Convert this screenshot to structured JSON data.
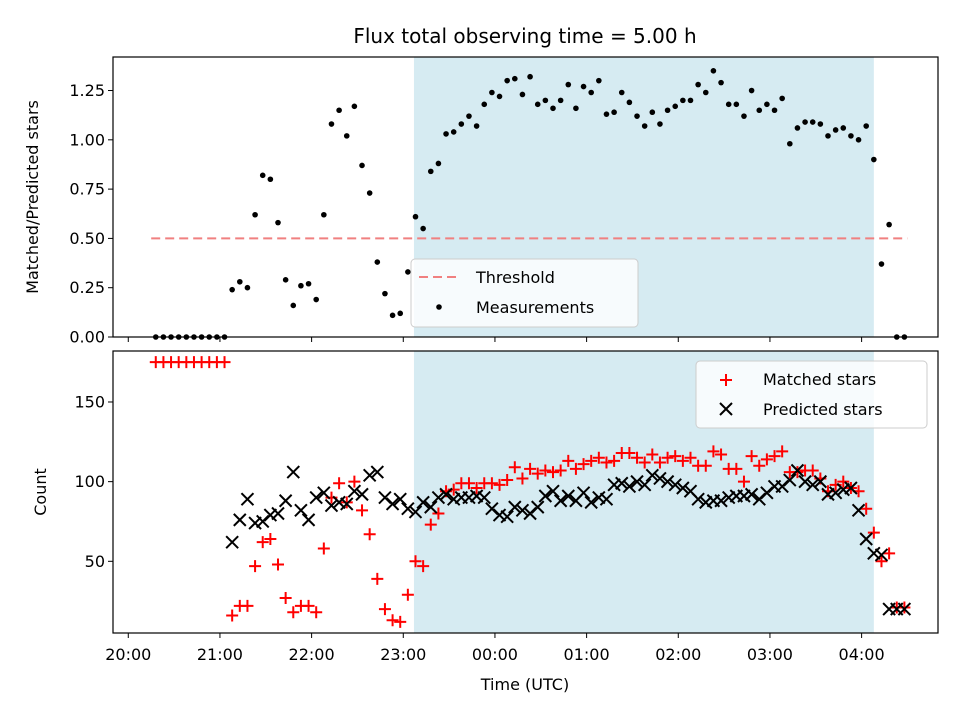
{
  "figure": {
    "title": "Flux total observing time = 5.00 h"
  },
  "chart_data": [
    {
      "type": "scatter",
      "panel": "top",
      "title": "Flux total observing time = 5.00 h",
      "xlabel": "",
      "ylabel": "Matched/Predicted stars",
      "ylim": [
        0.0,
        1.42
      ],
      "yticks": [
        0.0,
        0.25,
        0.5,
        0.75,
        1.0,
        1.25
      ],
      "yticklabels": [
        "0.00",
        "0.25",
        "0.50",
        "0.75",
        "1.00",
        "1.25"
      ],
      "shaded_x_range": [
        "23:07",
        "04:08"
      ],
      "shade_color": "#add8e6",
      "threshold": {
        "name": "Threshold",
        "value": 0.5,
        "x_range": [
          "20:15",
          "04:30"
        ],
        "color": "#f08080",
        "style": "dashed"
      },
      "legend": {
        "placement": "lower center",
        "entries": [
          "Threshold",
          "Measurements"
        ]
      },
      "series": [
        {
          "name": "Measurements",
          "color": "#000000",
          "marker": "dot",
          "x": [
            "20:18",
            "20:23",
            "20:28",
            "20:33",
            "20:38",
            "20:43",
            "20:48",
            "20:53",
            "20:58",
            "21:03",
            "21:08",
            "21:13",
            "21:18",
            "21:23",
            "21:28",
            "21:33",
            "21:38",
            "21:43",
            "21:48",
            "21:53",
            "21:58",
            "22:03",
            "22:08",
            "22:13",
            "22:18",
            "22:23",
            "22:28",
            "22:33",
            "22:38",
            "22:43",
            "22:48",
            "22:53",
            "22:58",
            "23:03",
            "23:08",
            "23:13",
            "23:18",
            "23:23",
            "23:28",
            "23:33",
            "23:38",
            "23:43",
            "23:48",
            "23:53",
            "23:58",
            "00:03",
            "00:08",
            "00:13",
            "00:18",
            "00:23",
            "00:28",
            "00:33",
            "00:38",
            "00:43",
            "00:48",
            "00:53",
            "00:58",
            "01:03",
            "01:08",
            "01:13",
            "01:18",
            "01:23",
            "01:28",
            "01:33",
            "01:38",
            "01:43",
            "01:48",
            "01:53",
            "01:58",
            "02:03",
            "02:08",
            "02:13",
            "02:18",
            "02:23",
            "02:28",
            "02:33",
            "02:38",
            "02:43",
            "02:48",
            "02:53",
            "02:58",
            "03:03",
            "03:08",
            "03:13",
            "03:18",
            "03:23",
            "03:28",
            "03:33",
            "03:38",
            "03:43",
            "03:48",
            "03:53",
            "03:58",
            "04:03",
            "04:08",
            "04:13",
            "04:18",
            "04:23",
            "04:28"
          ],
          "y": [
            0.0,
            0.0,
            0.0,
            0.0,
            0.0,
            0.0,
            0.0,
            0.0,
            0.0,
            0.0,
            0.24,
            0.28,
            0.25,
            0.62,
            0.82,
            0.8,
            0.58,
            0.29,
            0.16,
            0.26,
            0.27,
            0.19,
            0.62,
            1.08,
            1.15,
            1.02,
            1.17,
            0.87,
            0.73,
            0.38,
            0.22,
            0.11,
            0.12,
            0.33,
            0.61,
            0.55,
            0.84,
            0.88,
            1.03,
            1.04,
            1.08,
            1.12,
            1.07,
            1.18,
            1.24,
            1.22,
            1.3,
            1.31,
            1.23,
            1.32,
            1.18,
            1.2,
            1.16,
            1.2,
            1.28,
            1.16,
            1.27,
            1.24,
            1.3,
            1.13,
            1.14,
            1.24,
            1.19,
            1.12,
            1.07,
            1.14,
            1.08,
            1.15,
            1.17,
            1.2,
            1.2,
            1.28,
            1.24,
            1.35,
            1.29,
            1.18,
            1.18,
            1.12,
            1.25,
            1.15,
            1.18,
            1.15,
            1.21,
            0.98,
            1.06,
            1.09,
            1.09,
            1.08,
            1.02,
            1.05,
            1.06,
            1.02,
            1.0,
            1.07,
            0.9,
            0.37,
            0.57,
            0.0,
            0.0
          ]
        }
      ]
    },
    {
      "type": "scatter",
      "panel": "bottom",
      "xlabel": "Time (UTC)",
      "ylabel": "Count",
      "ylim": [
        5,
        182
      ],
      "yticks": [
        50,
        100,
        150
      ],
      "yticklabels": [
        "50",
        "100",
        "150"
      ],
      "xlim": [
        "19:50",
        "04:50"
      ],
      "xticks": [
        "20:00",
        "21:00",
        "22:00",
        "23:00",
        "00:00",
        "01:00",
        "02:00",
        "03:00",
        "04:00"
      ],
      "shaded_x_range": [
        "23:07",
        "04:08"
      ],
      "shade_color": "#add8e6",
      "legend": {
        "placement": "upper right",
        "entries": [
          "Matched stars",
          "Predicted stars"
        ]
      },
      "series": [
        {
          "name": "Matched stars",
          "color": "#ff0000",
          "marker": "plus",
          "x": [
            "20:18",
            "20:23",
            "20:28",
            "20:33",
            "20:38",
            "20:43",
            "20:48",
            "20:53",
            "20:58",
            "21:03",
            "21:08",
            "21:13",
            "21:18",
            "21:23",
            "21:28",
            "21:33",
            "21:38",
            "21:43",
            "21:48",
            "21:53",
            "21:58",
            "22:03",
            "22:08",
            "22:13",
            "22:18",
            "22:23",
            "22:28",
            "22:33",
            "22:38",
            "22:43",
            "22:48",
            "22:53",
            "22:58",
            "23:03",
            "23:08",
            "23:13",
            "23:18",
            "23:23",
            "23:28",
            "23:33",
            "23:38",
            "23:43",
            "23:48",
            "23:53",
            "23:58",
            "00:03",
            "00:08",
            "00:13",
            "00:18",
            "00:23",
            "00:28",
            "00:33",
            "00:38",
            "00:43",
            "00:48",
            "00:53",
            "00:58",
            "01:03",
            "01:08",
            "01:13",
            "01:18",
            "01:23",
            "01:28",
            "01:33",
            "01:38",
            "01:43",
            "01:48",
            "01:53",
            "01:58",
            "02:03",
            "02:08",
            "02:13",
            "02:18",
            "02:23",
            "02:28",
            "02:33",
            "02:38",
            "02:43",
            "02:48",
            "02:53",
            "02:58",
            "03:03",
            "03:08",
            "03:13",
            "03:18",
            "03:23",
            "03:28",
            "03:33",
            "03:38",
            "03:43",
            "03:48",
            "03:53",
            "03:58",
            "04:03",
            "04:08",
            "04:13",
            "04:18",
            "04:23",
            "04:28"
          ],
          "y": [
            175,
            175,
            175,
            175,
            175,
            175,
            175,
            175,
            175,
            175,
            16,
            22,
            22,
            47,
            62,
            64,
            48,
            27,
            18,
            22,
            22,
            18,
            58,
            90,
            99,
            87,
            100,
            82,
            67,
            39,
            20,
            13,
            12,
            29,
            50,
            47,
            73,
            80,
            94,
            95,
            99,
            99,
            96,
            99,
            99,
            98,
            101,
            109,
            102,
            108,
            105,
            107,
            106,
            107,
            113,
            108,
            111,
            113,
            115,
            112,
            113,
            118,
            118,
            115,
            112,
            117,
            112,
            115,
            116,
            113,
            115,
            110,
            110,
            119,
            117,
            108,
            108,
            100,
            116,
            110,
            114,
            116,
            119,
            106,
            106,
            107,
            107,
            102,
            94,
            98,
            100,
            96,
            94,
            83,
            68,
            50,
            55,
            21,
            21
          ]
        },
        {
          "name": "Predicted stars",
          "color": "#000000",
          "marker": "x",
          "x": [
            "21:08",
            "21:13",
            "21:18",
            "21:23",
            "21:28",
            "21:33",
            "21:38",
            "21:43",
            "21:48",
            "21:53",
            "21:58",
            "22:03",
            "22:08",
            "22:13",
            "22:18",
            "22:23",
            "22:28",
            "22:33",
            "22:38",
            "22:43",
            "22:48",
            "22:53",
            "22:58",
            "23:03",
            "23:08",
            "23:13",
            "23:18",
            "23:23",
            "23:28",
            "23:33",
            "23:38",
            "23:43",
            "23:48",
            "23:53",
            "23:58",
            "00:03",
            "00:08",
            "00:13",
            "00:18",
            "00:23",
            "00:28",
            "00:33",
            "00:38",
            "00:43",
            "00:48",
            "00:53",
            "00:58",
            "01:03",
            "01:08",
            "01:13",
            "01:18",
            "01:23",
            "01:28",
            "01:33",
            "01:38",
            "01:43",
            "01:48",
            "01:53",
            "01:58",
            "02:03",
            "02:08",
            "02:13",
            "02:18",
            "02:23",
            "02:28",
            "02:33",
            "02:38",
            "02:43",
            "02:48",
            "02:53",
            "02:58",
            "03:03",
            "03:08",
            "03:13",
            "03:18",
            "03:23",
            "03:28",
            "03:33",
            "03:38",
            "03:43",
            "03:48",
            "03:53",
            "03:58",
            "04:03",
            "04:08",
            "04:13",
            "04:18",
            "04:23",
            "04:28"
          ],
          "y": [
            62,
            76,
            89,
            74,
            75,
            79,
            80,
            88,
            106,
            82,
            76,
            90,
            93,
            85,
            87,
            86,
            94,
            92,
            104,
            106,
            90,
            86,
            89,
            83,
            81,
            87,
            84,
            90,
            92,
            89,
            90,
            90,
            91,
            90,
            83,
            79,
            78,
            84,
            82,
            80,
            84,
            91,
            94,
            88,
            91,
            88,
            93,
            87,
            90,
            89,
            98,
            99,
            97,
            100,
            98,
            104,
            102,
            100,
            98,
            96,
            94,
            89,
            87,
            88,
            88,
            90,
            91,
            91,
            92,
            89,
            93,
            97,
            97,
            101,
            107,
            100,
            98,
            100,
            92,
            93,
            95,
            96,
            82,
            64,
            55,
            54,
            20,
            20,
            20
          ]
        }
      ]
    }
  ]
}
